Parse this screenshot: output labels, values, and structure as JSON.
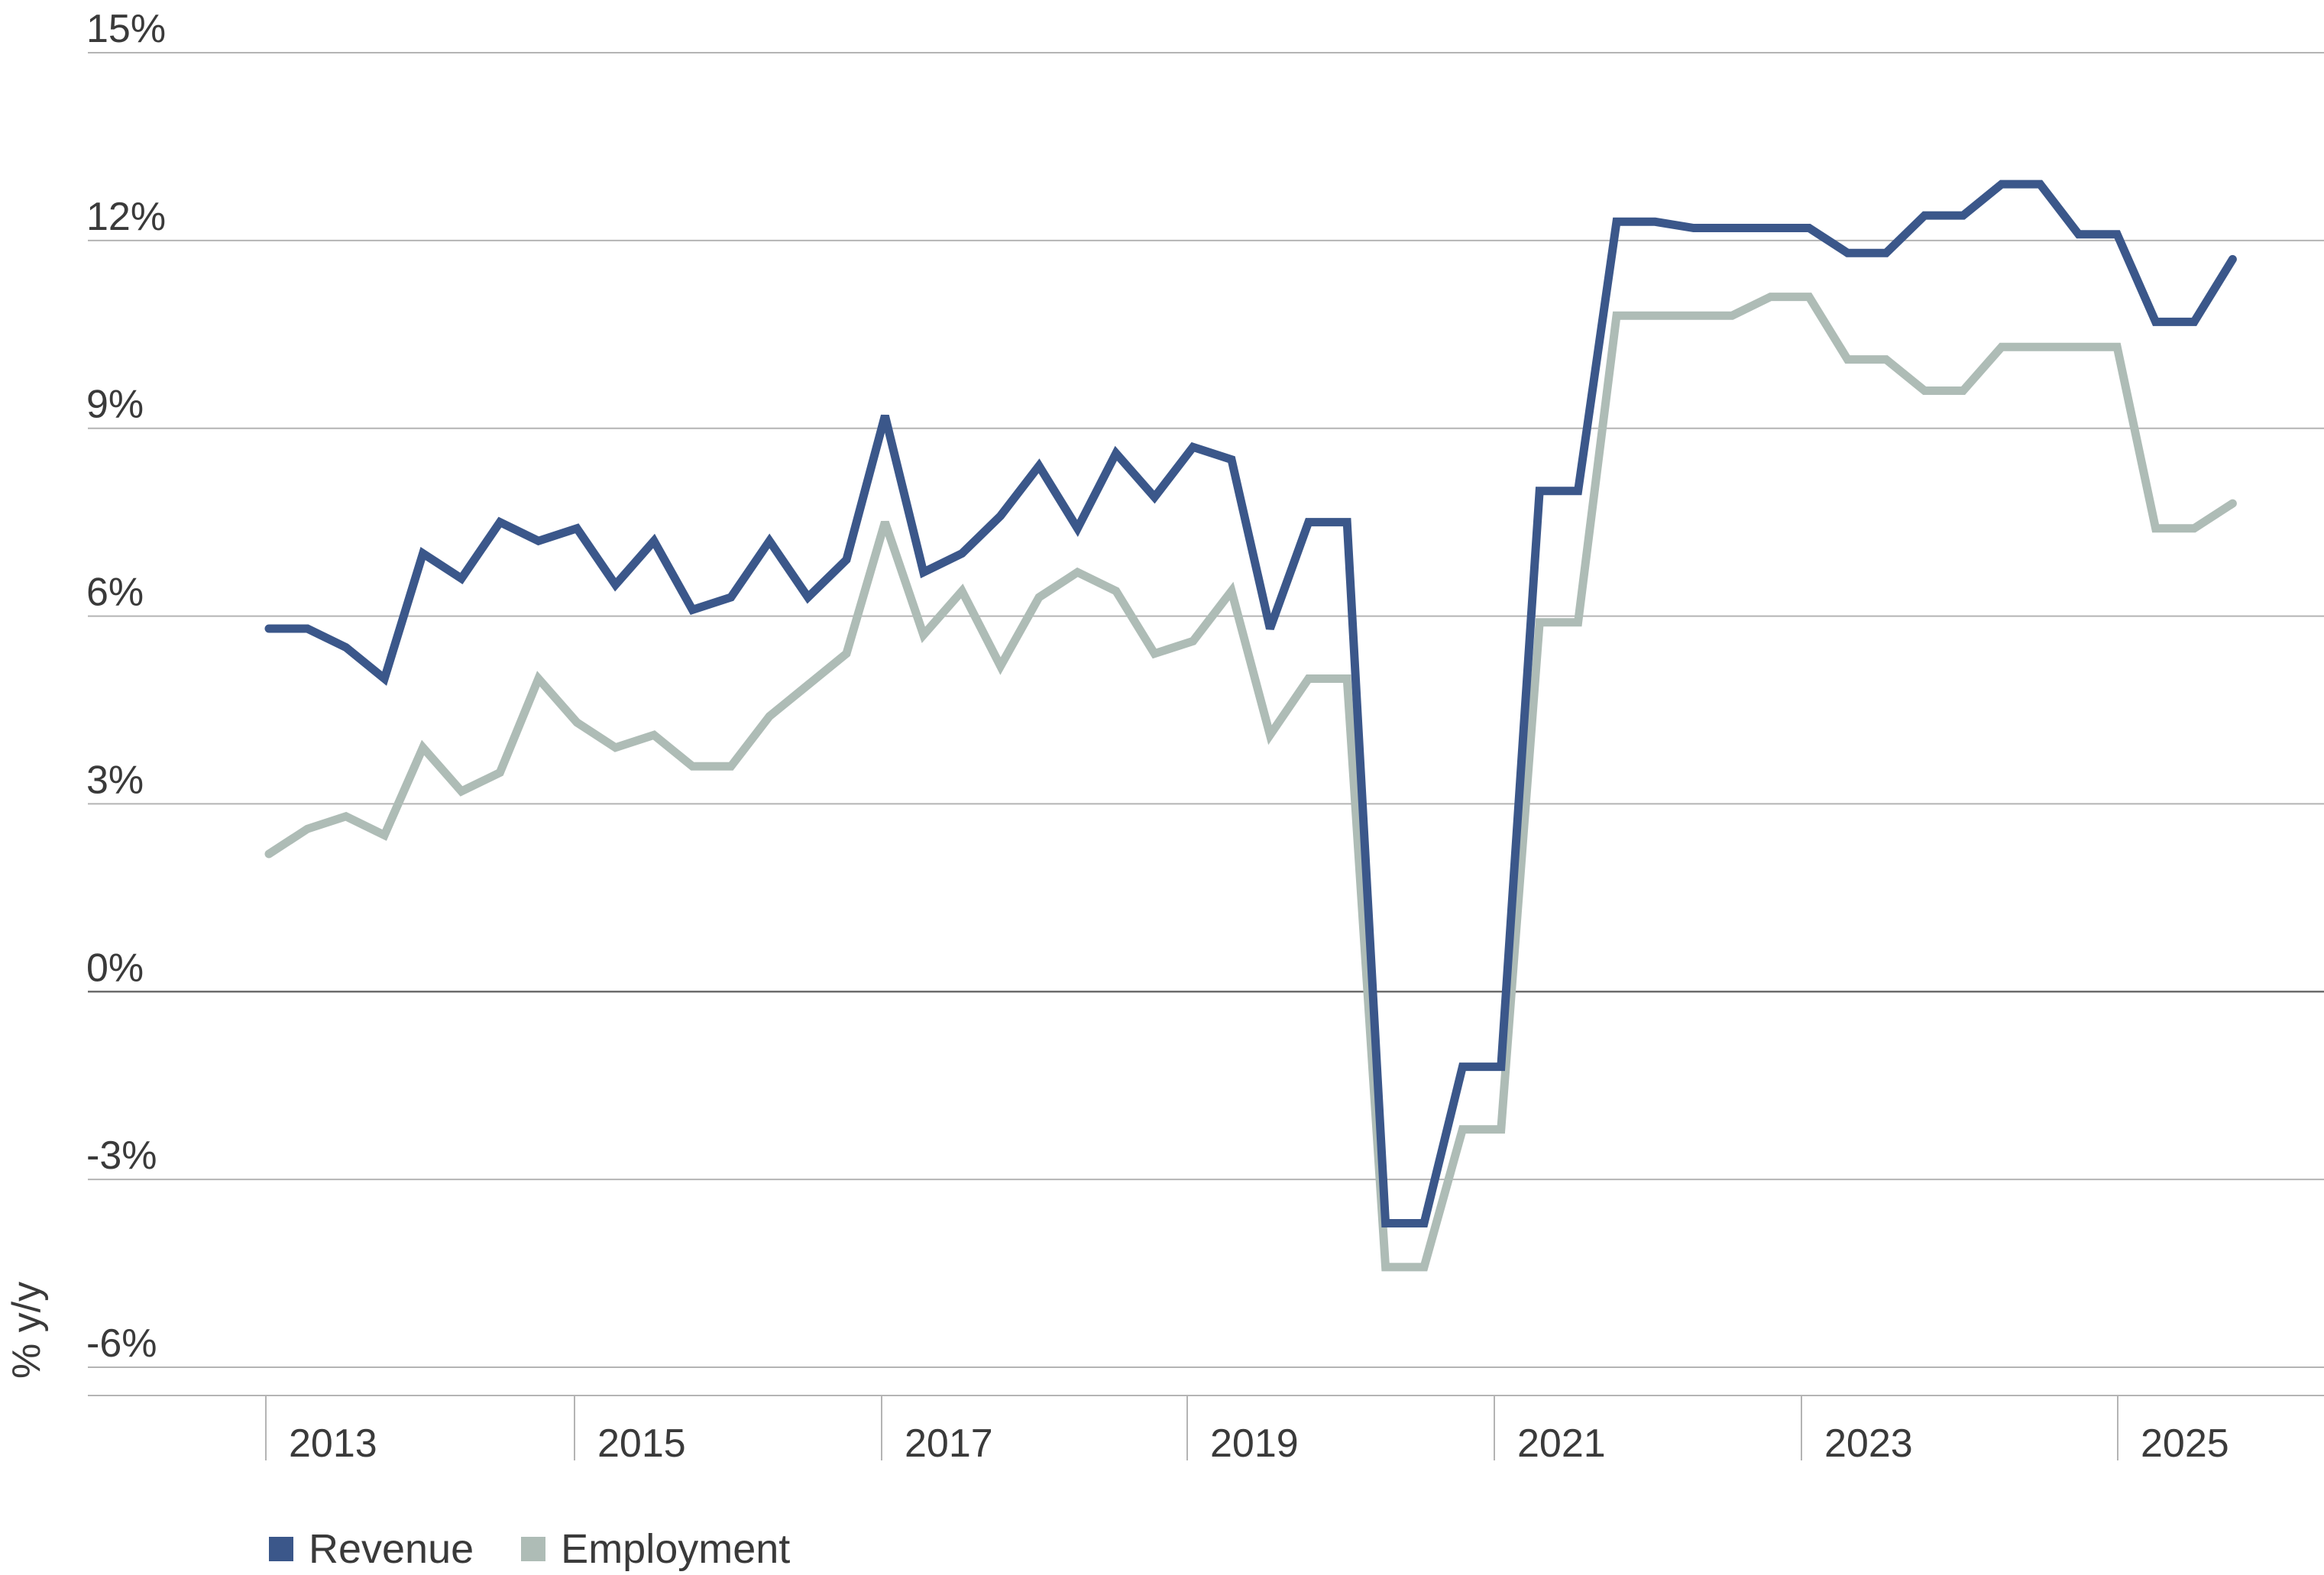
{
  "chart_data": {
    "type": "line",
    "ylabel": "% y/y",
    "xlabel": "",
    "ylim": [
      -6,
      15
    ],
    "yticks": [
      -6,
      -3,
      0,
      3,
      6,
      9,
      12,
      15
    ],
    "ytick_labels": [
      "-6%",
      "-3%",
      "0%",
      "3%",
      "6%",
      "9%",
      "12%",
      "15%"
    ],
    "xtick_labels": [
      "2013",
      "2015",
      "2017",
      "2019",
      "2021",
      "2023",
      "2025"
    ],
    "x_start_year": 2012.5,
    "x_step_years": 0.25,
    "grid": true,
    "legend_position": "bottom-left",
    "series": [
      {
        "name": "Revenue",
        "color": "#3b578a",
        "values": [
          5.8,
          5.8,
          5.5,
          5.0,
          7.0,
          6.6,
          7.5,
          7.2,
          7.4,
          6.5,
          7.2,
          6.1,
          6.3,
          7.2,
          6.3,
          6.9,
          9.2,
          6.7,
          7.0,
          7.6,
          8.4,
          7.4,
          8.6,
          7.9,
          8.7,
          8.5,
          5.8,
          7.5,
          7.5,
          -3.7,
          -3.7,
          -1.2,
          -1.2,
          8.0,
          8.0,
          12.3,
          12.3,
          12.2,
          12.2,
          12.2,
          12.2,
          11.8,
          11.8,
          12.4,
          12.4,
          12.9,
          12.9,
          12.1,
          12.1,
          10.7,
          10.7,
          11.7
        ]
      },
      {
        "name": "Employment",
        "color": "#aebcb6",
        "values": [
          2.2,
          2.6,
          2.8,
          2.5,
          3.9,
          3.2,
          3.5,
          5.0,
          4.3,
          3.9,
          4.1,
          3.6,
          3.6,
          4.4,
          4.9,
          5.4,
          7.5,
          5.7,
          6.4,
          5.2,
          6.3,
          6.7,
          6.4,
          5.4,
          5.6,
          6.4,
          4.1,
          5.0,
          5.0,
          -4.4,
          -4.4,
          -2.2,
          -2.2,
          5.9,
          5.9,
          10.8,
          10.8,
          10.8,
          10.8,
          11.1,
          11.1,
          10.1,
          10.1,
          9.6,
          9.6,
          10.3,
          10.3,
          10.3,
          10.3,
          7.4,
          7.4,
          7.8
        ]
      }
    ]
  }
}
